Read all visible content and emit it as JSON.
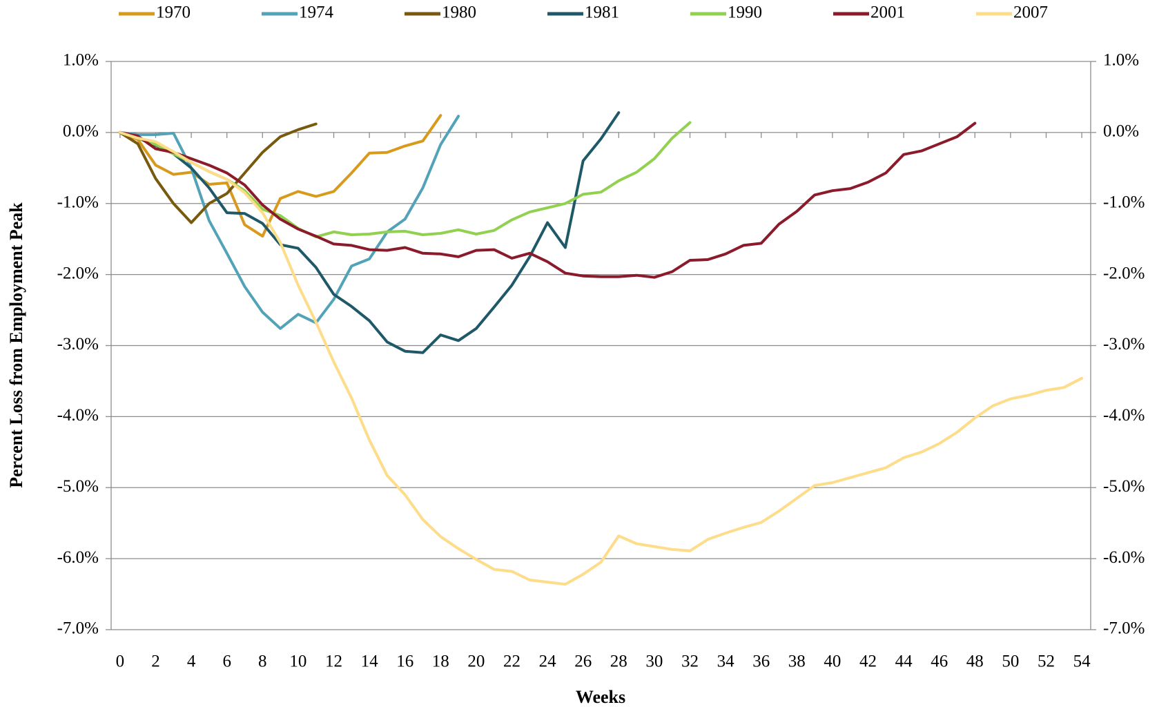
{
  "chart_data": {
    "type": "line",
    "x_label": "Weeks",
    "y_label": "Percent Loss from Employment Peak",
    "x": [
      0,
      1,
      2,
      3,
      4,
      5,
      6,
      7,
      8,
      9,
      10,
      11,
      12,
      13,
      14,
      15,
      16,
      17,
      18,
      19,
      20,
      21,
      22,
      23,
      24,
      25,
      26,
      27,
      28,
      29,
      30,
      31,
      32,
      33,
      34,
      35,
      36,
      37,
      38,
      39,
      40,
      41,
      42,
      43,
      44,
      45,
      46,
      47,
      48,
      49,
      50,
      51,
      52,
      53,
      54
    ],
    "xlim": [
      -0.5,
      54.5
    ],
    "xticks": [
      0,
      2,
      4,
      6,
      8,
      10,
      12,
      14,
      16,
      18,
      20,
      22,
      24,
      26,
      28,
      30,
      32,
      34,
      36,
      38,
      40,
      42,
      44,
      46,
      48,
      50,
      52,
      54
    ],
    "ylim": [
      -7,
      1
    ],
    "yticks": [
      {
        "value": 1,
        "label": "1.0%"
      },
      {
        "value": 0,
        "label": "0.0%"
      },
      {
        "value": -1,
        "label": "-1.0%"
      },
      {
        "value": -2,
        "label": "-2.0%"
      },
      {
        "value": -3,
        "label": "-3.0%"
      },
      {
        "value": -4,
        "label": "-4.0%"
      },
      {
        "value": -5,
        "label": "-5.0%"
      },
      {
        "value": -6,
        "label": "-6.0%"
      },
      {
        "value": -7,
        "label": "-7.0%"
      }
    ],
    "y2lim": [
      -7,
      1
    ],
    "y2ticks": [
      {
        "value": 1,
        "label": "1.0%"
      },
      {
        "value": 0,
        "label": "0.0%"
      },
      {
        "value": -1,
        "label": "-1.0%"
      },
      {
        "value": -2,
        "label": "-2.0%"
      },
      {
        "value": -3,
        "label": "-3.0%"
      },
      {
        "value": -4,
        "label": "-4.0%"
      },
      {
        "value": -5,
        "label": "-5.0%"
      },
      {
        "value": -6,
        "label": "-6.0%"
      },
      {
        "value": -7,
        "label": "-7.0%"
      }
    ],
    "grid": true,
    "legend": "top",
    "series": [
      {
        "name": "1970",
        "color": "#d89a1c",
        "values": [
          0,
          -0.1,
          -0.46,
          -0.59,
          -0.56,
          -0.73,
          -0.71,
          -1.3,
          -1.46,
          -0.93,
          -0.83,
          -0.9,
          -0.83,
          -0.57,
          -0.29,
          -0.28,
          -0.19,
          -0.12,
          0.24,
          null,
          null,
          null,
          null,
          null,
          null,
          null,
          null,
          null,
          null,
          null,
          null,
          null,
          null,
          null,
          null,
          null,
          null,
          null,
          null,
          null,
          null,
          null,
          null,
          null,
          null,
          null,
          null,
          null,
          null,
          null,
          null,
          null,
          null,
          null,
          null
        ]
      },
      {
        "name": "1974",
        "color": "#52a3b8",
        "values": [
          0,
          -0.03,
          -0.03,
          -0.01,
          -0.5,
          -1.24,
          -1.7,
          -2.17,
          -2.53,
          -2.76,
          -2.56,
          -2.68,
          -2.35,
          -1.88,
          -1.78,
          -1.4,
          -1.22,
          -0.78,
          -0.17,
          0.23,
          null,
          null,
          null,
          null,
          null,
          null,
          null,
          null,
          null,
          null,
          null,
          null,
          null,
          null,
          null,
          null,
          null,
          null,
          null,
          null,
          null,
          null,
          null,
          null,
          null,
          null,
          null,
          null,
          null,
          null,
          null,
          null,
          null,
          null,
          null
        ]
      },
      {
        "name": "1980",
        "color": "#785a0f",
        "values": [
          0,
          -0.16,
          -0.65,
          -1.0,
          -1.27,
          -1.0,
          -0.86,
          -0.57,
          -0.28,
          -0.06,
          0.04,
          0.12,
          null,
          null,
          null,
          null,
          null,
          null,
          null,
          null,
          null,
          null,
          null,
          null,
          null,
          null,
          null,
          null,
          null,
          null,
          null,
          null,
          null,
          null,
          null,
          null,
          null,
          null,
          null,
          null,
          null,
          null,
          null,
          null,
          null,
          null,
          null,
          null,
          null,
          null,
          null,
          null,
          null,
          null,
          null
        ]
      },
      {
        "name": "1981",
        "color": "#1f5968",
        "values": [
          0,
          -0.08,
          -0.18,
          -0.3,
          -0.5,
          -0.78,
          -1.13,
          -1.14,
          -1.28,
          -1.58,
          -1.63,
          -1.9,
          -2.28,
          -2.45,
          -2.65,
          -2.95,
          -3.08,
          -3.1,
          -2.85,
          -2.93,
          -2.76,
          -2.46,
          -2.15,
          -1.75,
          -1.27,
          -1.62,
          -0.4,
          -0.09,
          0.28,
          null,
          null,
          null,
          null,
          null,
          null,
          null,
          null,
          null,
          null,
          null,
          null,
          null,
          null,
          null,
          null,
          null,
          null,
          null,
          null,
          null,
          null,
          null,
          null,
          null,
          null
        ]
      },
      {
        "name": "1990",
        "color": "#92d050",
        "values": [
          0,
          -0.08,
          -0.17,
          -0.3,
          -0.42,
          -0.55,
          -0.66,
          -0.82,
          -1.08,
          -1.17,
          -1.35,
          -1.47,
          -1.4,
          -1.44,
          -1.43,
          -1.4,
          -1.39,
          -1.44,
          -1.42,
          -1.37,
          -1.43,
          -1.38,
          -1.23,
          -1.12,
          -1.06,
          -1.0,
          -0.87,
          -0.84,
          -0.68,
          -0.56,
          -0.37,
          -0.08,
          0.14,
          null,
          null,
          null,
          null,
          null,
          null,
          null,
          null,
          null,
          null,
          null,
          null,
          null,
          null,
          null,
          null,
          null,
          null,
          null,
          null,
          null,
          null
        ]
      },
      {
        "name": "2001",
        "color": "#8b1a2b",
        "values": [
          0,
          -0.05,
          -0.23,
          -0.28,
          -0.37,
          -0.46,
          -0.57,
          -0.74,
          -1.02,
          -1.22,
          -1.36,
          -1.46,
          -1.57,
          -1.59,
          -1.65,
          -1.66,
          -1.62,
          -1.7,
          -1.71,
          -1.75,
          -1.66,
          -1.65,
          -1.77,
          -1.7,
          -1.82,
          -1.98,
          -2.02,
          -2.03,
          -2.03,
          -2.01,
          -2.04,
          -1.96,
          -1.8,
          -1.79,
          -1.71,
          -1.59,
          -1.56,
          -1.29,
          -1.11,
          -0.88,
          -0.82,
          -0.79,
          -0.7,
          -0.57,
          -0.31,
          -0.26,
          -0.16,
          -0.06,
          0.13,
          null,
          null,
          null,
          null,
          null,
          null
        ]
      },
      {
        "name": "2007",
        "color": "#fddc8a",
        "values": [
          0,
          -0.08,
          -0.13,
          -0.27,
          -0.42,
          -0.55,
          -0.66,
          -0.85,
          -1.13,
          -1.55,
          -2.15,
          -2.67,
          -3.23,
          -3.74,
          -4.33,
          -4.83,
          -5.1,
          -5.45,
          -5.69,
          -5.86,
          -6.01,
          -6.15,
          -6.18,
          -6.3,
          -6.33,
          -6.36,
          -6.22,
          -6.05,
          -5.68,
          -5.79,
          -5.83,
          -5.87,
          -5.89,
          -5.73,
          -5.64,
          -5.56,
          -5.49,
          -5.33,
          -5.15,
          -4.97,
          -4.93,
          -4.86,
          -4.79,
          -4.72,
          -4.58,
          -4.5,
          -4.38,
          -4.22,
          -4.02,
          -3.85,
          -3.75,
          -3.7,
          -3.63,
          -3.59,
          -3.46
        ]
      }
    ]
  }
}
